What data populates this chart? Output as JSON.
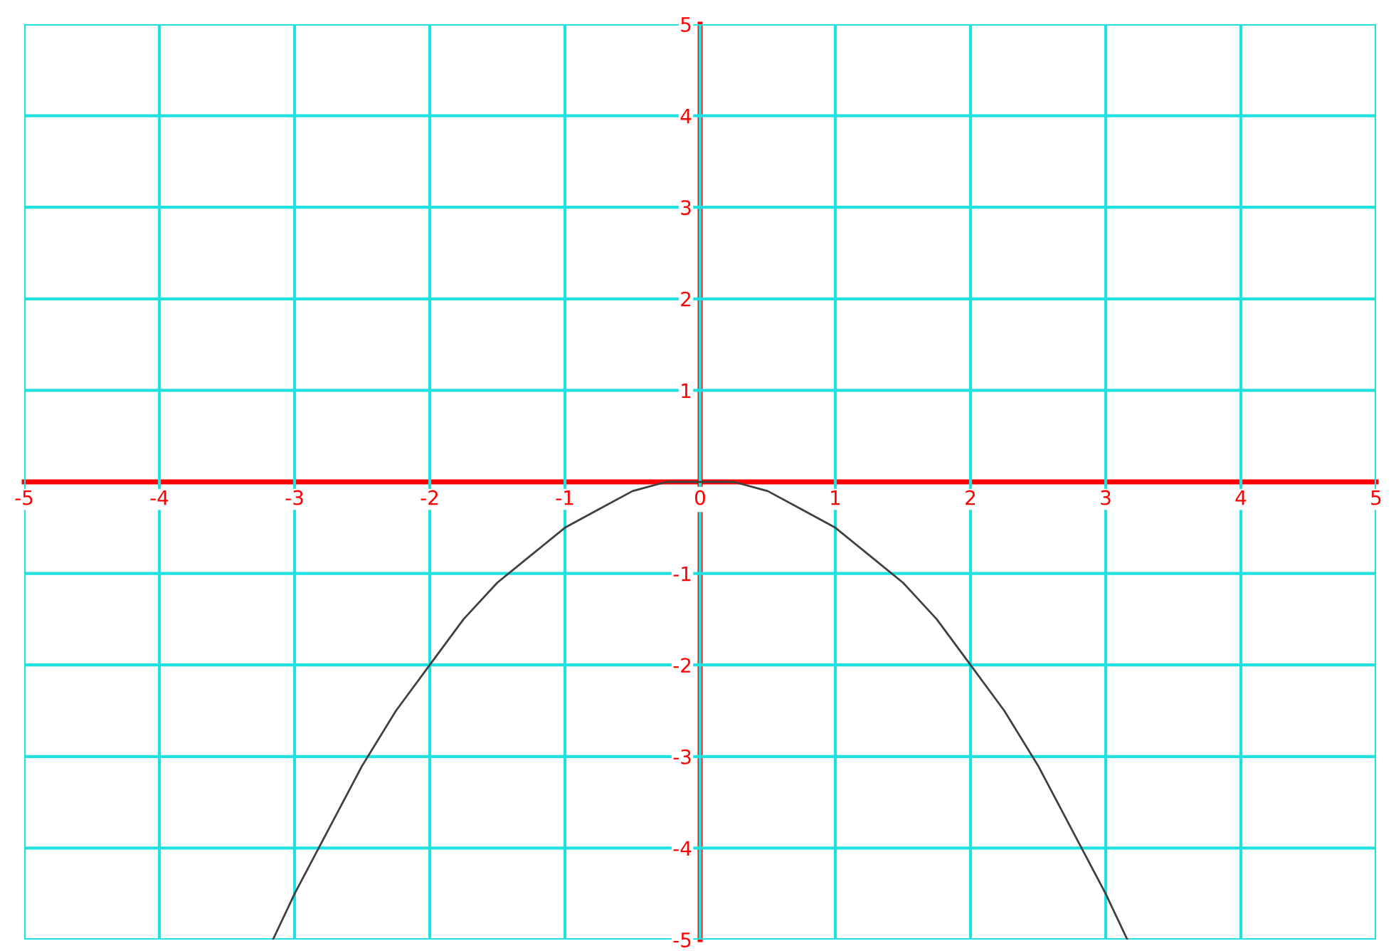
{
  "chart_data": {
    "type": "line",
    "x": [
      -3.16,
      -3,
      -2.75,
      -2.5,
      -2.25,
      -2,
      -1.75,
      -1.5,
      -1.25,
      -1,
      -0.75,
      -0.5,
      -0.25,
      0,
      0.25,
      0.5,
      0.75,
      1,
      1.25,
      1.5,
      1.75,
      2,
      2.25,
      2.5,
      2.75,
      3,
      3.16
    ],
    "series": [
      {
        "color": "#404040",
        "values": [
          -5,
          -4.5,
          -3.8,
          -3.1,
          -2.5,
          -2,
          -1.5,
          -1.1,
          -0.8,
          -0.5,
          -0.3,
          -0.1,
          0,
          0,
          0,
          -0.1,
          -0.3,
          -0.5,
          -0.8,
          -1.1,
          -1.5,
          -2,
          -2.5,
          -3.1,
          -3.8,
          -4.5,
          -5
        ]
      }
    ],
    "xlim": [
      -5,
      5
    ],
    "ylim": [
      -5,
      5
    ],
    "xticks": [
      -5,
      -4,
      -3,
      -2,
      -1,
      0,
      1,
      2,
      3,
      4,
      5
    ],
    "yticks": [
      -5,
      -4,
      -3,
      -2,
      -1,
      1,
      2,
      3,
      4,
      5
    ],
    "grid": true,
    "marker": "none",
    "line_style": "solid"
  }
}
